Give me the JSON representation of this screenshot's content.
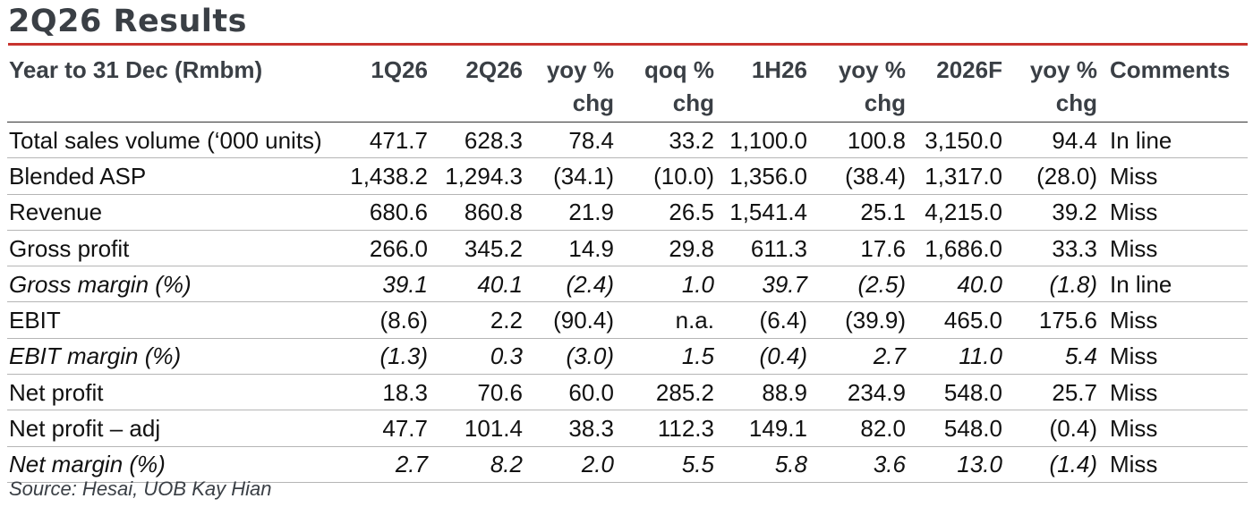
{
  "title": "2Q26 Results",
  "header": {
    "label": "Year to 31 Dec (Rmbm)",
    "columns": [
      "1Q26",
      "2Q26",
      "yoy %\nchg",
      "qoq %\nchg",
      "1H26",
      "yoy %\nchg",
      "2026F",
      "yoy %\nchg",
      "Comments"
    ]
  },
  "rows": [
    {
      "label": "Total sales volume (‘000 units)",
      "italic": false,
      "values": [
        "471.7",
        "628.3",
        "78.4",
        "33.2",
        "1,100.0",
        "100.8",
        "3,150.0",
        "94.4"
      ],
      "comment": "In line"
    },
    {
      "label": "Blended ASP",
      "italic": false,
      "values": [
        "1,438.2",
        "1,294.3",
        "(34.1)",
        "(10.0)",
        "1,356.0",
        "(38.4)",
        "1,317.0",
        "(28.0)"
      ],
      "comment": "Miss"
    },
    {
      "label": "Revenue",
      "italic": false,
      "values": [
        "680.6",
        "860.8",
        "21.9",
        "26.5",
        "1,541.4",
        "25.1",
        "4,215.0",
        "39.2"
      ],
      "comment": "Miss"
    },
    {
      "label": "Gross profit",
      "italic": false,
      "values": [
        "266.0",
        "345.2",
        "14.9",
        "29.8",
        "611.3",
        "17.6",
        "1,686.0",
        "33.3"
      ],
      "comment": "Miss"
    },
    {
      "label": "Gross margin (%)",
      "italic": true,
      "values": [
        "39.1",
        "40.1",
        "(2.4)",
        "1.0",
        "39.7",
        "(2.5)",
        "40.0",
        "(1.8)"
      ],
      "comment": "In line"
    },
    {
      "label": "EBIT",
      "italic": false,
      "values": [
        "(8.6)",
        "2.2",
        "(90.4)",
        "n.a.",
        "(6.4)",
        "(39.9)",
        "465.0",
        "175.6"
      ],
      "comment": "Miss"
    },
    {
      "label": "EBIT margin (%)",
      "italic": true,
      "values": [
        "(1.3)",
        "0.3",
        "(3.0)",
        "1.5",
        "(0.4)",
        "2.7",
        "11.0",
        "5.4"
      ],
      "comment": "Miss"
    },
    {
      "label": "Net profit",
      "italic": false,
      "values": [
        "18.3",
        "70.6",
        "60.0",
        "285.2",
        "88.9",
        "234.9",
        "548.0",
        "25.7"
      ],
      "comment": "Miss"
    },
    {
      "label": "Net profit – adj",
      "italic": false,
      "values": [
        "47.7",
        "101.4",
        "38.3",
        "112.3",
        "149.1",
        "82.0",
        "548.0",
        "(0.4)"
      ],
      "comment": "Miss"
    },
    {
      "label": "Net margin (%)",
      "italic": true,
      "values": [
        "2.7",
        "8.2",
        "2.0",
        "5.5",
        "5.8",
        "3.6",
        "13.0",
        "(1.4)"
      ],
      "comment": "Miss"
    }
  ],
  "source": "Source: Hesai, UOB Kay Hian",
  "colors": {
    "accent_rule": "#c8332e",
    "title_text": "#3a3f45"
  }
}
